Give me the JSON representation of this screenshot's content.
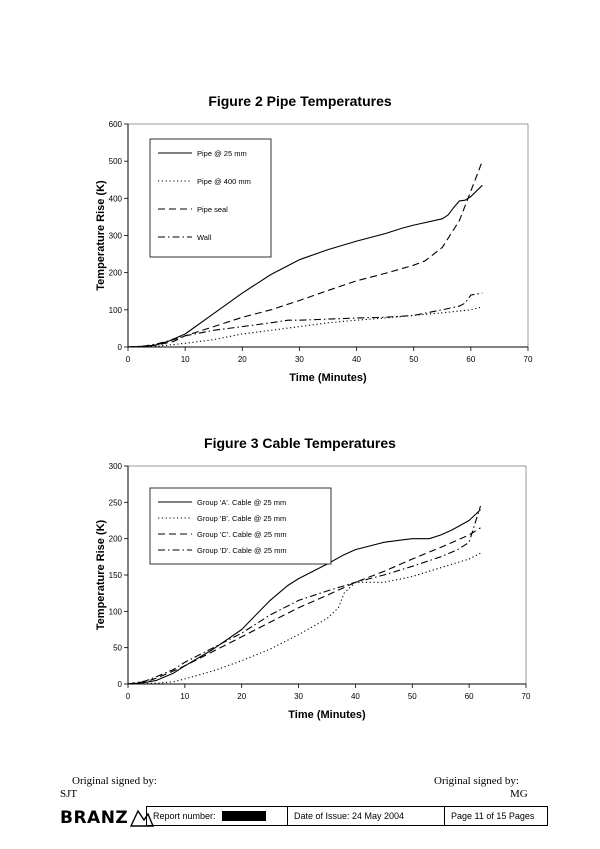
{
  "figures": [
    {
      "title": "Figure 2  Pipe Temperatures",
      "chart_data": {
        "type": "line",
        "xlabel": "Time (Minutes)",
        "ylabel": "Temperature Rise (K)",
        "xlim": [
          0,
          70
        ],
        "ylim": [
          0,
          600
        ],
        "xticks": [
          "0",
          "10",
          "20",
          "30",
          "40",
          "50",
          "60",
          "70"
        ],
        "yticks": [
          "0",
          "100",
          "200",
          "300",
          "400",
          "500",
          "600"
        ],
        "grid": false,
        "legend_position": "top-left",
        "series": [
          {
            "name": "Pipe @ 25 mm",
            "style": "solid",
            "x": [
              0,
              3,
              5,
              7,
              10,
              15,
              20,
              25,
              30,
              35,
              40,
              45,
              48,
              50,
              55,
              56,
              57,
              58,
              59,
              60,
              62
            ],
            "y": [
              0,
              2,
              6,
              15,
              35,
              90,
              145,
              195,
              235,
              262,
              285,
              305,
              320,
              328,
              345,
              355,
              375,
              393,
              395,
              405,
              435
            ]
          },
          {
            "name": "Pipe @ 400 mm",
            "style": "dotted",
            "x": [
              0,
              5,
              10,
              15,
              20,
              25,
              30,
              35,
              40,
              45,
              50,
              55,
              60,
              62
            ],
            "y": [
              0,
              2,
              10,
              20,
              35,
              45,
              55,
              65,
              72,
              78,
              85,
              92,
              100,
              108
            ]
          },
          {
            "name": "Pipe seal",
            "style": "dashed",
            "x": [
              0,
              3,
              5,
              8,
              10,
              15,
              20,
              25,
              30,
              35,
              40,
              45,
              50,
              52,
              55,
              58,
              60,
              62
            ],
            "y": [
              0,
              2,
              5,
              15,
              30,
              55,
              80,
              100,
              125,
              152,
              178,
              198,
              220,
              232,
              268,
              340,
              420,
              500
            ]
          },
          {
            "name": "Wall",
            "style": "dashdot",
            "x": [
              0,
              3,
              5,
              8,
              10,
              15,
              20,
              25,
              28,
              30,
              35,
              40,
              45,
              50,
              55,
              58,
              59,
              60,
              62
            ],
            "y": [
              0,
              3,
              8,
              20,
              30,
              45,
              55,
              65,
              72,
              72,
              75,
              78,
              80,
              85,
              100,
              110,
              118,
              140,
              145
            ]
          }
        ]
      }
    },
    {
      "title": "Figure 3  Cable Temperatures",
      "chart_data": {
        "type": "line",
        "xlabel": "Time (Minutes)",
        "ylabel": "Temperature Rise (K)",
        "xlim": [
          0,
          70
        ],
        "ylim": [
          0,
          300
        ],
        "xticks": [
          "0",
          "10",
          "20",
          "30",
          "40",
          "50",
          "60",
          "70"
        ],
        "yticks": [
          "0",
          "50",
          "100",
          "150",
          "200",
          "250",
          "300"
        ],
        "grid": false,
        "legend_position": "top-left",
        "series": [
          {
            "name": "Group 'A'. Cable @ 25 mm",
            "style": "solid",
            "x": [
              0,
              3,
              5,
              8,
              10,
              15,
              20,
              25,
              28,
              30,
              35,
              38,
              40,
              45,
              48,
              50,
              53,
              55,
              57,
              60,
              62
            ],
            "y": [
              0,
              2,
              5,
              15,
              25,
              48,
              75,
              115,
              135,
              145,
              165,
              178,
              185,
              195,
              198,
              200,
              200,
              205,
              212,
              225,
              240
            ]
          },
          {
            "name": "Group 'B'. Cable @ 25 mm",
            "style": "dotted",
            "x": [
              0,
              5,
              8,
              10,
              15,
              20,
              25,
              30,
              35,
              37,
              38,
              40,
              45,
              50,
              55,
              60,
              62
            ],
            "y": [
              0,
              1,
              3,
              7,
              18,
              32,
              48,
              68,
              90,
              105,
              125,
              140,
              140,
              148,
              160,
              172,
              180
            ]
          },
          {
            "name": "Group 'C'. Cable @ 25 mm",
            "style": "dashed",
            "x": [
              0,
              3,
              5,
              8,
              10,
              15,
              20,
              25,
              30,
              35,
              40,
              45,
              50,
              55,
              60,
              62
            ],
            "y": [
              0,
              3,
              8,
              18,
              25,
              45,
              65,
              85,
              105,
              122,
              140,
              155,
              172,
              188,
              205,
              215
            ]
          },
          {
            "name": "Group 'D'. Cable @ 25 mm",
            "style": "dashdot",
            "x": [
              0,
              3,
              5,
              8,
              10,
              15,
              20,
              25,
              30,
              35,
              40,
              45,
              50,
              55,
              58,
              60,
              61,
              62
            ],
            "y": [
              0,
              4,
              10,
              20,
              30,
              50,
              70,
              95,
              115,
              128,
              140,
              150,
              162,
              175,
              185,
              195,
              220,
              245
            ]
          }
        ]
      }
    }
  ],
  "signatures": {
    "left_signed": "Original signed by:",
    "left_name": "SJT",
    "right_signed": "Original signed by:",
    "right_name": "MG"
  },
  "footer": {
    "logo_text": "BRANZ",
    "report_label": "Report number:",
    "date_label": "Date of Issue: 24 May 2004",
    "page_label": "Page 11 of 15 Pages"
  }
}
